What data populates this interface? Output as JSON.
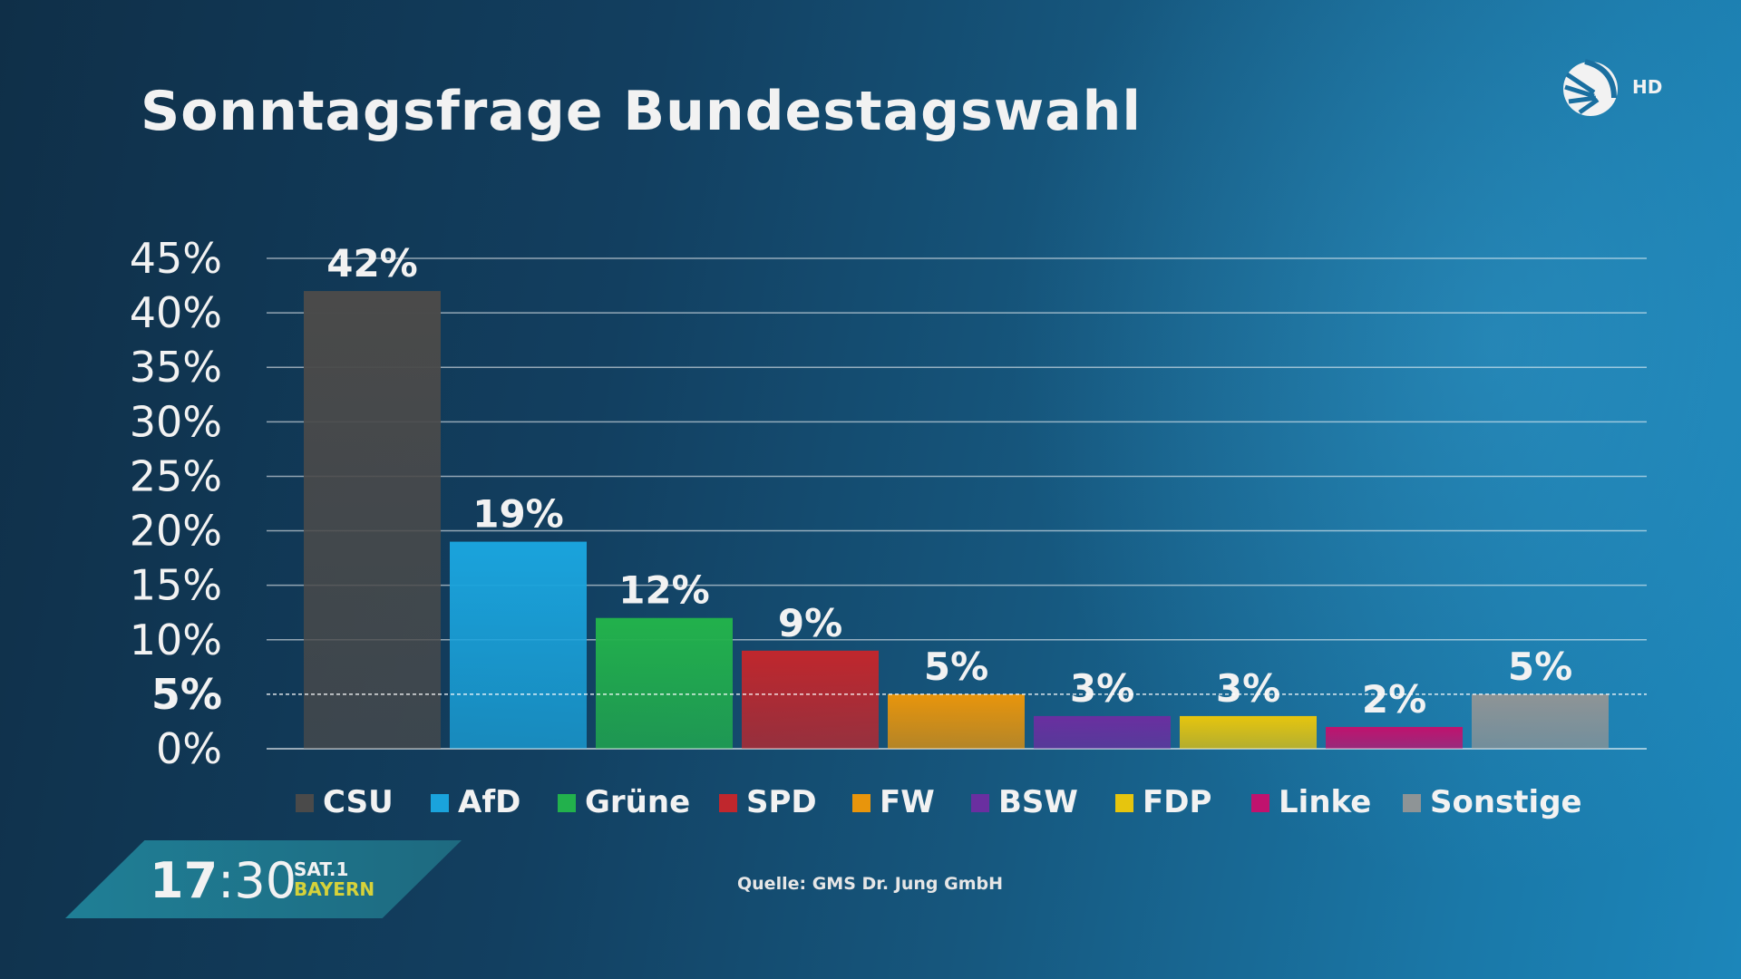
{
  "header": {
    "title": "Sonntagsfrage Bundestagswahl",
    "channel_badge": "HD"
  },
  "footer": {
    "time_hours": "17",
    "time_minutes": "30",
    "channel_top": "SAT.1",
    "channel_bottom": "BAYERN",
    "source": "Quelle: GMS Dr. Jung GmbH"
  },
  "chart_data": {
    "type": "bar",
    "title": "Sonntagsfrage Bundestagswahl",
    "categories": [
      "CSU",
      "AfD",
      "Grüne",
      "SPD",
      "FW",
      "BSW",
      "FDP",
      "Linke",
      "Sonstige"
    ],
    "values": [
      42,
      19,
      12,
      9,
      5,
      3,
      3,
      2,
      5
    ],
    "data_labels": [
      "42%",
      "19%",
      "12%",
      "9%",
      "5%",
      "3%",
      "3%",
      "2%",
      "5%"
    ],
    "colors": [
      "#4a4a4a",
      "#1aa3dc",
      "#22b14c",
      "#c0272d",
      "#e8950c",
      "#6a2fa0",
      "#e6c50e",
      "#c0126e",
      "#8e9496"
    ],
    "yticks": [
      "0%",
      "5%",
      "10%",
      "15%",
      "20%",
      "25%",
      "30%",
      "35%",
      "40%",
      "45%"
    ],
    "ylim": [
      0,
      45
    ],
    "grid": true,
    "reference_line": 5,
    "legend_position": "bottom"
  }
}
